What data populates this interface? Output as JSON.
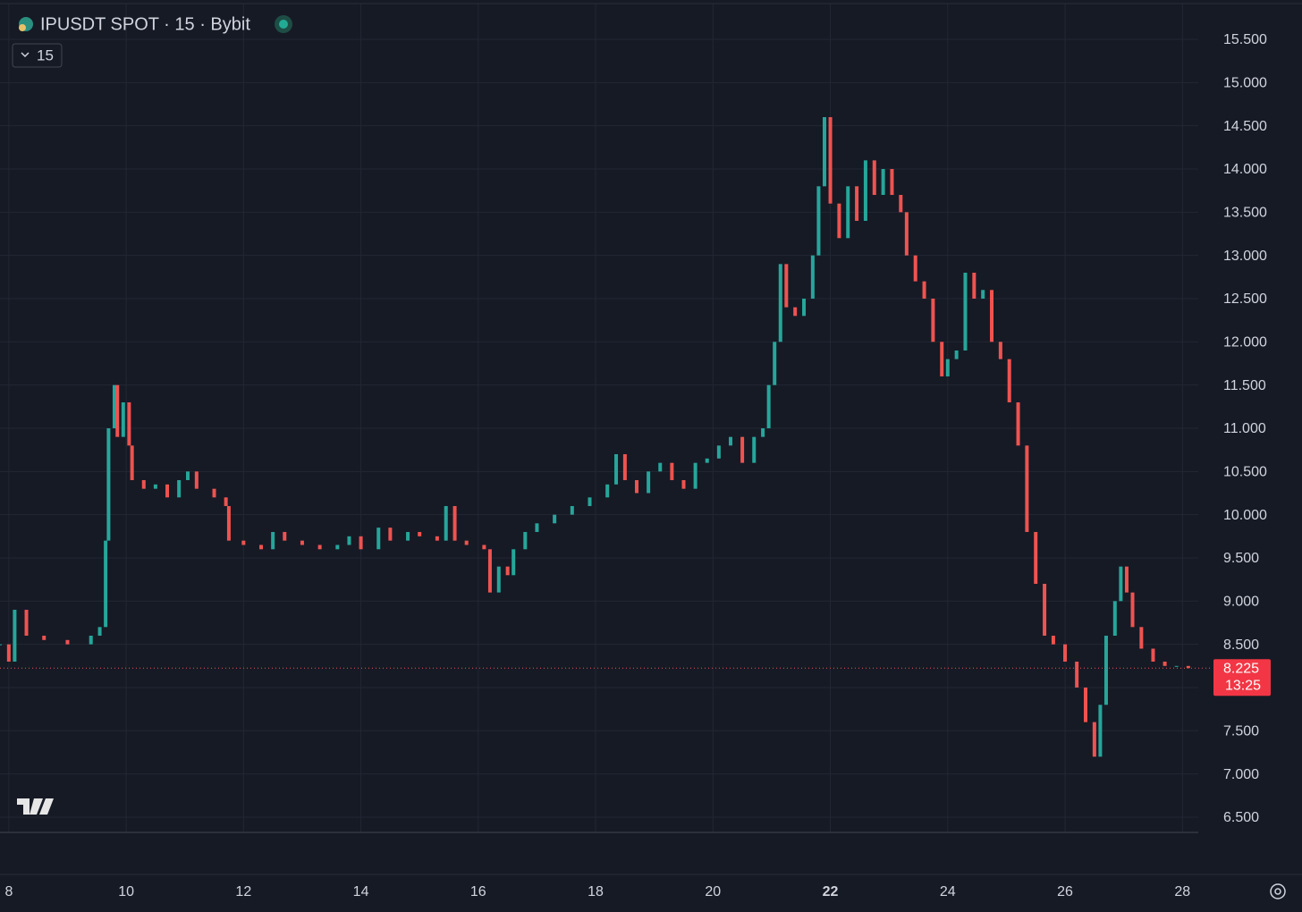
{
  "chart_data": {
    "type": "candlestick",
    "title": "IPUSDT SPOT · 15 · Bybit",
    "interval": "15",
    "x": [
      7.85,
      8.0,
      8.1,
      8.3,
      8.6,
      9.0,
      9.4,
      9.55,
      9.65,
      9.7,
      9.8,
      9.85,
      9.95,
      10.05,
      10.1,
      10.3,
      10.5,
      10.7,
      10.9,
      11.05,
      11.2,
      11.5,
      11.7,
      11.75,
      12.0,
      12.3,
      12.5,
      12.7,
      13.0,
      13.3,
      13.6,
      13.8,
      14.0,
      14.3,
      14.5,
      14.8,
      15.0,
      15.3,
      15.45,
      15.6,
      15.8,
      16.1,
      16.2,
      16.35,
      16.5,
      16.6,
      16.8,
      17.0,
      17.3,
      17.6,
      17.9,
      18.2,
      18.35,
      18.5,
      18.7,
      18.9,
      19.1,
      19.3,
      19.5,
      19.7,
      19.9,
      20.1,
      20.3,
      20.5,
      20.7,
      20.85,
      20.95,
      21.05,
      21.15,
      21.25,
      21.4,
      21.55,
      21.7,
      21.8,
      21.9,
      22.0,
      22.15,
      22.3,
      22.45,
      22.6,
      22.75,
      22.9,
      23.05,
      23.2,
      23.3,
      23.45,
      23.6,
      23.75,
      23.9,
      24.0,
      24.15,
      24.3,
      24.45,
      24.6,
      24.75,
      24.9,
      25.05,
      25.2,
      25.35,
      25.5,
      25.65,
      25.8,
      26.0,
      26.2,
      26.35,
      26.5,
      26.6,
      26.7,
      26.85,
      26.95,
      27.05,
      27.15,
      27.3,
      27.5,
      27.7,
      27.9,
      28.1
    ],
    "values": [
      8.5,
      8.3,
      8.9,
      8.6,
      8.55,
      8.5,
      8.6,
      8.7,
      9.7,
      11.0,
      11.5,
      10.9,
      11.3,
      10.8,
      10.4,
      10.3,
      10.35,
      10.2,
      10.4,
      10.5,
      10.3,
      10.2,
      10.1,
      9.7,
      9.65,
      9.6,
      9.8,
      9.7,
      9.65,
      9.6,
      9.65,
      9.75,
      9.6,
      9.85,
      9.7,
      9.8,
      9.75,
      9.7,
      10.1,
      9.7,
      9.65,
      9.6,
      9.1,
      9.4,
      9.3,
      9.6,
      9.8,
      9.9,
      10.0,
      10.1,
      10.2,
      10.35,
      10.7,
      10.4,
      10.25,
      10.5,
      10.6,
      10.4,
      10.3,
      10.6,
      10.65,
      10.8,
      10.9,
      10.6,
      10.9,
      11.0,
      11.5,
      12.0,
      12.9,
      12.4,
      12.3,
      12.5,
      13.0,
      13.8,
      14.6,
      13.6,
      13.2,
      13.8,
      13.4,
      14.1,
      13.7,
      14.0,
      13.7,
      13.5,
      13.0,
      12.7,
      12.5,
      12.0,
      11.6,
      11.8,
      11.9,
      12.8,
      12.5,
      12.6,
      12.0,
      11.8,
      11.3,
      10.8,
      9.8,
      9.2,
      8.6,
      8.5,
      8.3,
      8.0,
      7.6,
      7.2,
      7.8,
      8.6,
      9.0,
      9.4,
      9.1,
      8.7,
      8.45,
      8.3,
      8.25,
      8.25,
      8.225
    ],
    "up_color": "#26a69a",
    "down_color": "#ef5350",
    "xlim": [
      7.85,
      28.27
    ],
    "xticks": [
      8,
      10,
      12,
      14,
      16,
      18,
      20,
      22,
      24,
      26,
      28
    ],
    "bold_xticks": [
      22
    ],
    "ylim": [
      6.334,
      15.914
    ],
    "yticks": [
      {
        "value": 6.5,
        "label": "6.500"
      },
      {
        "value": 7.0,
        "label": "7.000"
      },
      {
        "value": 7.5,
        "label": "7.500"
      },
      {
        "value": 8.0,
        "label": "8.000"
      },
      {
        "value": 8.5,
        "label": "8.500"
      },
      {
        "value": 9.0,
        "label": "9.000"
      },
      {
        "value": 9.5,
        "label": "9.500"
      },
      {
        "value": 10.0,
        "label": "10.000"
      },
      {
        "value": 10.5,
        "label": "10.500"
      },
      {
        "value": 11.0,
        "label": "11.000"
      },
      {
        "value": 11.5,
        "label": "11.500"
      },
      {
        "value": 12.0,
        "label": "12.000"
      },
      {
        "value": 12.5,
        "label": "12.500"
      },
      {
        "value": 13.0,
        "label": "13.000"
      },
      {
        "value": 13.5,
        "label": "13.500"
      },
      {
        "value": 14.0,
        "label": "14.000"
      },
      {
        "value": 14.5,
        "label": "14.500"
      },
      {
        "value": 15.0,
        "label": "15.000"
      },
      {
        "value": 15.5,
        "label": "15.500"
      }
    ],
    "grid": true,
    "last_price": 8.225,
    "countdown": "13:25"
  }
}
